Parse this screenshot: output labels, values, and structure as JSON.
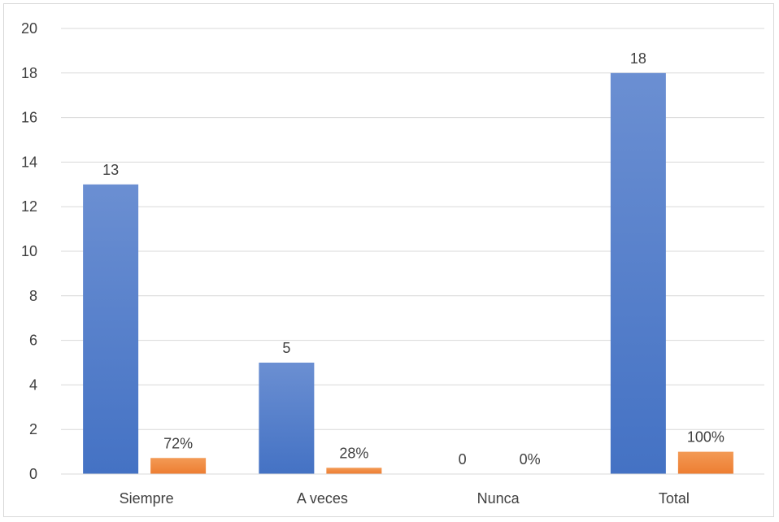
{
  "chart_data": {
    "type": "bar",
    "categories": [
      "Siempre",
      "A veces",
      "Nunca",
      "Total"
    ],
    "series": [
      {
        "values": [
          13,
          5,
          0,
          18
        ],
        "labels": [
          "13",
          "5",
          "0",
          "18"
        ],
        "color": "#4472c4"
      },
      {
        "values": [
          0.72,
          0.28,
          0,
          1.0
        ],
        "labels": [
          "72%",
          "28%",
          "0%",
          "100%"
        ],
        "color": "#ed7d31"
      }
    ],
    "title": "",
    "xlabel": "",
    "ylabel": "",
    "ylim": [
      0,
      20
    ],
    "yticks": [
      "0",
      "2",
      "4",
      "6",
      "8",
      "10",
      "12",
      "14",
      "16",
      "18",
      "20"
    ],
    "grid": true,
    "legend": "none"
  }
}
